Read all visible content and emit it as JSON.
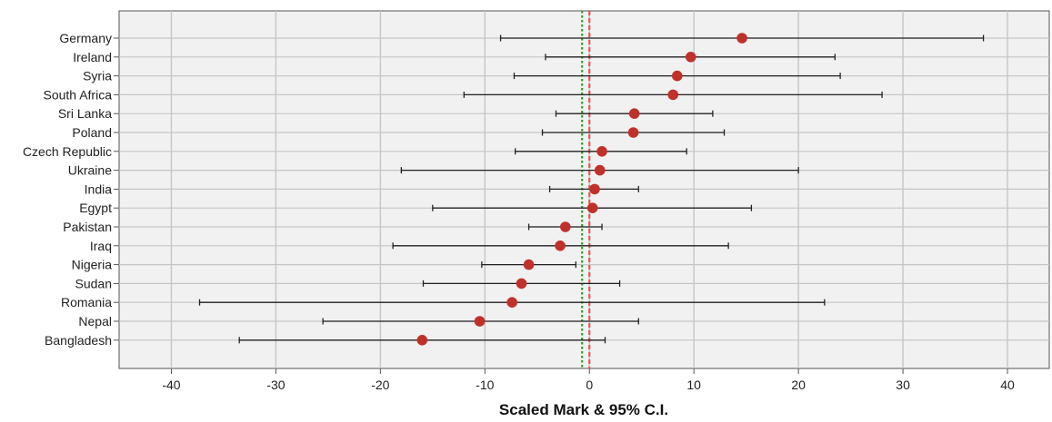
{
  "chart_data": {
    "type": "scatter",
    "title": "",
    "xlabel": "Scaled Mark & 95% C.I.",
    "ylabel": "",
    "xlim": [
      -45,
      44
    ],
    "xticks": [
      -40,
      -30,
      -20,
      -10,
      0,
      10,
      20,
      30,
      40
    ],
    "grid": true,
    "reference_lines": [
      {
        "x": -0.7,
        "color": "#2ca02c",
        "style": "dotted"
      },
      {
        "x": 0,
        "color": "#e05a5a",
        "style": "dashed"
      }
    ],
    "categories": [
      "Germany",
      "Ireland",
      "Syria",
      "South Africa",
      "Sri Lanka",
      "Poland",
      "Czech Republic",
      "Ukraine",
      "India",
      "Egypt",
      "Pakistan",
      "Iraq",
      "Nigeria",
      "Sudan",
      "Romania",
      "Nepal",
      "Bangladesh"
    ],
    "points": [
      {
        "category": "Germany",
        "mean": 14.6,
        "lower": -8.5,
        "upper": 37.7
      },
      {
        "category": "Ireland",
        "mean": 9.7,
        "lower": -4.2,
        "upper": 23.5
      },
      {
        "category": "Syria",
        "mean": 8.4,
        "lower": -7.2,
        "upper": 24.0
      },
      {
        "category": "South Africa",
        "mean": 8.0,
        "lower": -12.0,
        "upper": 28.0
      },
      {
        "category": "Sri Lanka",
        "mean": 4.3,
        "lower": -3.2,
        "upper": 11.8
      },
      {
        "category": "Poland",
        "mean": 4.2,
        "lower": -4.5,
        "upper": 12.9
      },
      {
        "category": "Czech Republic",
        "mean": 1.2,
        "lower": -7.1,
        "upper": 9.3
      },
      {
        "category": "Ukraine",
        "mean": 1.0,
        "lower": -18.0,
        "upper": 20.0
      },
      {
        "category": "India",
        "mean": 0.5,
        "lower": -3.8,
        "upper": 4.7
      },
      {
        "category": "Egypt",
        "mean": 0.3,
        "lower": -15.0,
        "upper": 15.5
      },
      {
        "category": "Pakistan",
        "mean": -2.3,
        "lower": -5.8,
        "upper": 1.2
      },
      {
        "category": "Iraq",
        "mean": -2.8,
        "lower": -18.8,
        "upper": 13.3
      },
      {
        "category": "Nigeria",
        "mean": -5.8,
        "lower": -10.3,
        "upper": -1.3
      },
      {
        "category": "Sudan",
        "mean": -6.5,
        "lower": -15.9,
        "upper": 2.9
      },
      {
        "category": "Romania",
        "mean": -7.4,
        "lower": -37.3,
        "upper": 22.5
      },
      {
        "category": "Nepal",
        "mean": -10.5,
        "lower": -25.5,
        "upper": 4.7
      },
      {
        "category": "Bangladesh",
        "mean": -16.0,
        "lower": -33.5,
        "upper": 1.5
      }
    ],
    "colors": {
      "plot_background": "#f1f1f1",
      "grid": "#c6c6c6",
      "axis": "#555555",
      "marker": "#c0312b",
      "whisker": "#222222",
      "ref_green": "#2ca02c",
      "ref_red": "#e05a5a"
    }
  }
}
